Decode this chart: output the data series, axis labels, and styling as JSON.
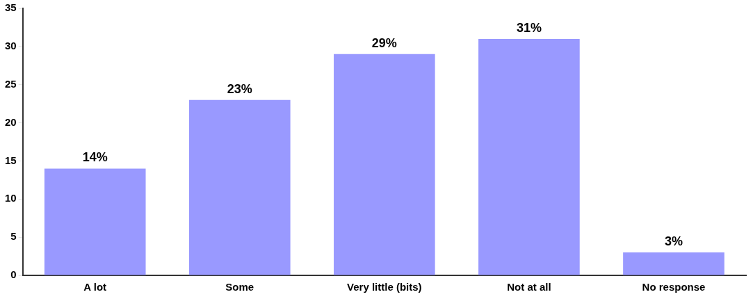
{
  "chart_data": {
    "type": "bar",
    "categories": [
      "A lot",
      "Some",
      "Very little (bits)",
      "Not at all",
      "No response"
    ],
    "values": [
      14,
      23,
      29,
      31,
      3
    ],
    "color": "#9999ff",
    "value_labels": [
      "14%",
      "23%",
      "29%",
      "31%",
      "3%"
    ],
    "ylim": [
      0,
      35
    ],
    "yticks": [
      0,
      5,
      10,
      15,
      20,
      25,
      30,
      35
    ],
    "grid": false,
    "legend": false
  }
}
